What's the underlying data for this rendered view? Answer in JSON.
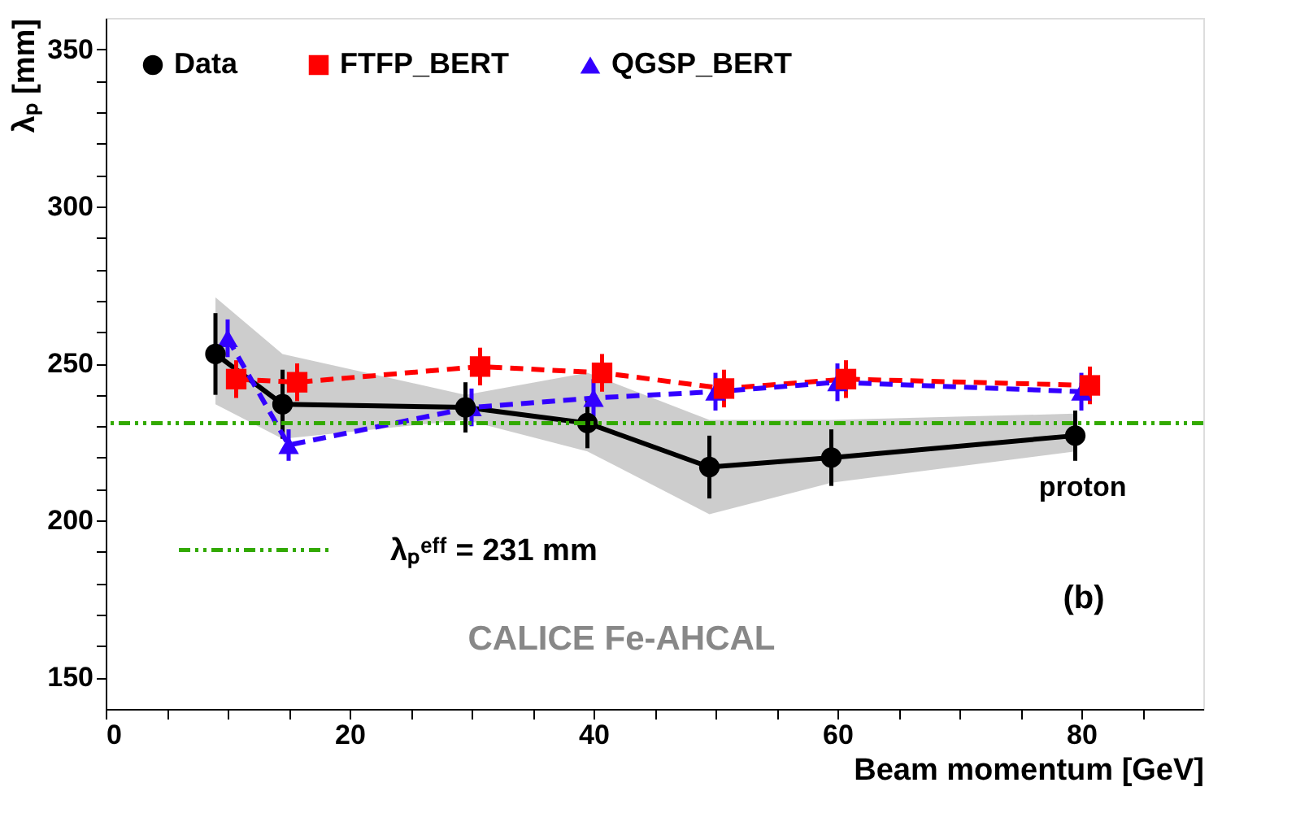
{
  "chart_data": {
    "type": "line",
    "xlabel": "Beam momentum [GeV]",
    "ylabel": "λₚ [mm]",
    "xlim": [
      0,
      90
    ],
    "ylim": [
      140,
      360
    ],
    "xticks": [
      0,
      {
        "value": 5,
        "label": null
      },
      {
        "value": 10,
        "label": null
      },
      {
        "value": 15,
        "label": null
      },
      20,
      {
        "value": 25,
        "label": null
      },
      {
        "value": 30,
        "label": null
      },
      {
        "value": 35,
        "label": null
      },
      40,
      {
        "value": 45,
        "label": null
      },
      {
        "value": 50,
        "label": null
      },
      {
        "value": 55,
        "label": null
      },
      60,
      {
        "value": 65,
        "label": null
      },
      {
        "value": 70,
        "label": null
      },
      {
        "value": 75,
        "label": null
      },
      80,
      {
        "value": 85,
        "label": null
      }
    ],
    "yticks": [
      150,
      {
        "value": 160,
        "label": null
      },
      {
        "value": 170,
        "label": null
      },
      {
        "value": 180,
        "label": null
      },
      {
        "value": 190,
        "label": null
      },
      200,
      {
        "value": 210,
        "label": null
      },
      {
        "value": 220,
        "label": null
      },
      {
        "value": 230,
        "label": null
      },
      {
        "value": 240,
        "label": null
      },
      250,
      {
        "value": 260,
        "label": null
      },
      {
        "value": 270,
        "label": null
      },
      {
        "value": 280,
        "label": null
      },
      {
        "value": 290,
        "label": null
      },
      300,
      {
        "value": 310,
        "label": null
      },
      {
        "value": 320,
        "label": null
      },
      {
        "value": 330,
        "label": null
      },
      {
        "value": 340,
        "label": null
      },
      350
    ],
    "grid": false,
    "legend": "top left",
    "series": [
      {
        "name": "Data",
        "color": "#000000",
        "marker": "circle",
        "line_style": "solid",
        "x": [
          9,
          14.5,
          29.5,
          39.5,
          49.5,
          59.5,
          79.5
        ],
        "values": [
          253,
          237,
          236,
          231,
          217,
          220,
          227
        ],
        "errors": [
          13,
          11,
          8,
          8,
          10,
          9,
          8
        ],
        "lower": [
          237,
          226,
          232,
          222,
          202,
          212,
          222
        ],
        "upper": [
          271,
          253,
          240,
          247,
          232,
          232,
          234
        ]
      },
      {
        "name": "FTFP_BERT",
        "color": "#ff0000",
        "marker": "square",
        "line_style": "dashed",
        "x": [
          10.7,
          15.7,
          30.7,
          40.7,
          50.7,
          60.7,
          80.7
        ],
        "values": [
          245,
          244,
          249,
          247,
          242,
          245,
          243
        ],
        "errors": [
          6,
          6,
          6,
          6,
          6,
          6,
          6
        ]
      },
      {
        "name": "QGSP_BERT",
        "color": "#3300ff",
        "marker": "triangle",
        "line_style": "dashed",
        "x": [
          10,
          15,
          30,
          40,
          50,
          60,
          80
        ],
        "values": [
          258,
          224,
          236,
          239,
          241,
          244,
          241
        ],
        "errors": [
          6,
          5,
          6,
          6,
          6,
          6,
          6
        ]
      }
    ],
    "ref_lines": [
      {
        "axis": "y",
        "value": 231,
        "label": "λₚᵉᶠᶠ = 231 mm",
        "color": "#33aa00",
        "line_style": "dashdotdot"
      }
    ],
    "annotations": [
      "proton",
      "(b)",
      "CALICE Fe-AHCAL"
    ]
  }
}
